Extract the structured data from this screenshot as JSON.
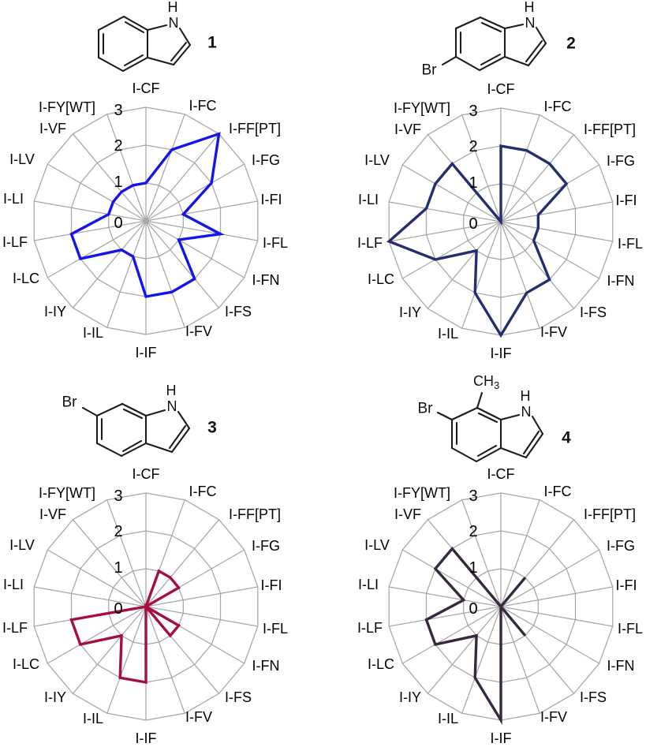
{
  "figure": {
    "grid_color": "#a6a6a6",
    "axes": [
      "I-CF",
      "I-FC",
      "I-FF[PT]",
      "I-FG",
      "I-FI",
      "I-FL",
      "I-FN",
      "I-FS",
      "I-FV",
      "I-IF",
      "I-IL",
      "I-IY",
      "I-LC",
      "I-LF",
      "I-LI",
      "I-LV",
      "I-VF",
      "I-FY[WT]"
    ],
    "radial_ticks": [
      "0",
      "1",
      "2",
      "3"
    ]
  },
  "chart_data": [
    {
      "type": "radar",
      "compound": "1",
      "color": "#1414eb",
      "categories": [
        "I-CF",
        "I-FC",
        "I-FF[PT]",
        "I-FG",
        "I-FI",
        "I-FL",
        "I-FN",
        "I-FS",
        "I-FV",
        "I-IF",
        "I-IL",
        "I-IY",
        "I-LC",
        "I-LF",
        "I-LI",
        "I-LV",
        "I-VF",
        "I-FY[WT]"
      ],
      "values": [
        1,
        2,
        3,
        2,
        1,
        2,
        1,
        2,
        2,
        2,
        1,
        1,
        2,
        2,
        1,
        1,
        1,
        1
      ],
      "rlim": [
        0,
        3
      ],
      "rticks": [
        "0",
        "1",
        "2",
        "3"
      ],
      "grid": true,
      "legend": "none"
    },
    {
      "type": "radar",
      "compound": "2",
      "color": "#252e6f",
      "categories": [
        "I-CF",
        "I-FC",
        "I-FF[PT]",
        "I-FG",
        "I-FI",
        "I-FL",
        "I-FN",
        "I-FS",
        "I-FV",
        "I-IF",
        "I-IL",
        "I-IY",
        "I-LC",
        "I-LF",
        "I-LI",
        "I-LV",
        "I-VF",
        "I-FY[WT]"
      ],
      "values": [
        2,
        2,
        2,
        2,
        1,
        1,
        1,
        2,
        2,
        3,
        2,
        1,
        2,
        3,
        2,
        2,
        2,
        0
      ],
      "rlim": [
        0,
        3
      ],
      "rticks": [
        "0",
        "1",
        "2",
        "3"
      ],
      "grid": true,
      "legend": "none"
    },
    {
      "type": "radar",
      "compound": "3",
      "color": "#a50e42",
      "categories": [
        "I-CF",
        "I-FC",
        "I-FF[PT]",
        "I-FG",
        "I-FI",
        "I-FL",
        "I-FN",
        "I-FS",
        "I-FV",
        "I-IF",
        "I-IL",
        "I-IY",
        "I-LC",
        "I-LF",
        "I-LI",
        "I-LV",
        "I-VF",
        "I-FY[WT]"
      ],
      "values": [
        0,
        1,
        1,
        1,
        0,
        0,
        1,
        1,
        0,
        2,
        2,
        1,
        2,
        2,
        0,
        0,
        0,
        0
      ],
      "rlim": [
        0,
        3
      ],
      "rticks": [
        "0",
        "1",
        "2",
        "3"
      ],
      "grid": true,
      "legend": "none"
    },
    {
      "type": "radar",
      "compound": "4",
      "color": "#372840",
      "categories": [
        "I-CF",
        "I-FC",
        "I-FF[PT]",
        "I-FG",
        "I-FI",
        "I-FL",
        "I-FN",
        "I-FS",
        "I-FV",
        "I-IF",
        "I-IL",
        "I-IY",
        "I-LC",
        "I-LF",
        "I-LI",
        "I-LV",
        "I-VF",
        "I-FY[WT]"
      ],
      "values": [
        0,
        0,
        1,
        0,
        0,
        0,
        0,
        1,
        0,
        3,
        2,
        1,
        2,
        2,
        1,
        2,
        2,
        0
      ],
      "rlim": [
        0,
        3
      ],
      "rticks": [
        "0",
        "1",
        "2",
        "3"
      ],
      "grid": true,
      "legend": "none"
    }
  ],
  "structures": [
    {
      "number": "1",
      "atoms": {
        "N": "N",
        "H": "H"
      }
    },
    {
      "number": "2",
      "atoms": {
        "N": "N",
        "H": "H",
        "Br": "Br"
      }
    },
    {
      "number": "3",
      "atoms": {
        "N": "N",
        "H": "H",
        "Br": "Br"
      }
    },
    {
      "number": "4",
      "atoms": {
        "N": "N",
        "H": "H",
        "Br": "Br",
        "CH": "CH",
        "sub": "3"
      }
    }
  ]
}
